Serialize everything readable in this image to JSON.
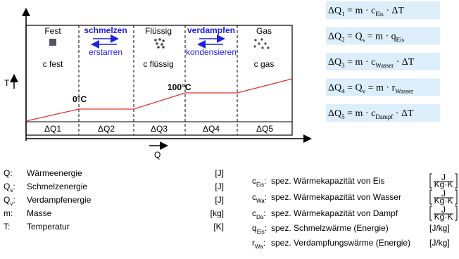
{
  "diagram": {
    "axis_labels": {
      "y": "T",
      "x": "Q"
    },
    "phases": [
      {
        "name": "Fest",
        "c": "c fest"
      },
      {
        "name": "Flüssig",
        "c": "c flüssig"
      },
      {
        "name": "Gas",
        "c": "c gas"
      }
    ],
    "transitions": [
      {
        "forward": "schmelzen",
        "backward": "erstarren"
      },
      {
        "forward": "verdampfen",
        "backward": "kondensieren"
      }
    ],
    "temperatures": [
      "0°C",
      "100°C"
    ],
    "heat_segments": [
      "ΔQ1",
      "ΔQ2",
      "ΔQ3",
      "ΔQ4",
      "ΔQ5"
    ]
  },
  "formulas": [
    [
      "ΔQ",
      "1",
      " = m · c",
      "Eis",
      " · ΔT"
    ],
    [
      "ΔQ",
      "2",
      " = Q",
      "s",
      " = m · q",
      "Eis"
    ],
    [
      "ΔQ",
      "3",
      " = m · c",
      "Wasser",
      " · ΔT"
    ],
    [
      "ΔQ",
      "4",
      " = Q",
      "v",
      " = m · r",
      "Wasser"
    ],
    [
      "ΔQ",
      "5",
      " = m · c",
      "Dampf",
      " · ΔT"
    ]
  ],
  "legend_left": [
    {
      "symbol": [
        "Q:"
      ],
      "text": "Wärmeenergie",
      "unit": "[J]"
    },
    {
      "symbol": [
        "Q",
        "s",
        ":"
      ],
      "text": "Schmelzenergie",
      "unit": "[J]"
    },
    {
      "symbol": [
        "Q",
        "v",
        ":"
      ],
      "text": "Verdampfenergie",
      "unit": "[J]"
    },
    {
      "symbol": [
        "m:"
      ],
      "text": "Masse",
      "unit": "[kg]"
    },
    {
      "symbol": [
        "T:"
      ],
      "text": "Temperatur",
      "unit": "[K]"
    }
  ],
  "legend_right": [
    {
      "symbol": [
        "c",
        "Eis",
        ":"
      ],
      "text": "spez. Wärmekapazität von Eis",
      "unit": {
        "num": "J",
        "den": "Kg·K"
      }
    },
    {
      "symbol": [
        "c",
        "Wa",
        ":"
      ],
      "text": "spez. Wärmekapazität von Wasser",
      "unit": {
        "num": "J",
        "den": "Kg·K"
      }
    },
    {
      "symbol": [
        "c",
        "Da",
        ":"
      ],
      "text": "spez. Wärmekapazität von Dampf",
      "unit": {
        "num": "J",
        "den": "Kg·K"
      }
    },
    {
      "symbol": [
        "q",
        "Eis",
        ":"
      ],
      "text": "spez. Schmelzwärme (Energie)",
      "unit": "[J/kg]"
    },
    {
      "symbol": [
        "r",
        "Wa",
        ":"
      ],
      "text": "spez. Verdampfungswärme (Energie)",
      "unit": "[J/kg]"
    }
  ]
}
